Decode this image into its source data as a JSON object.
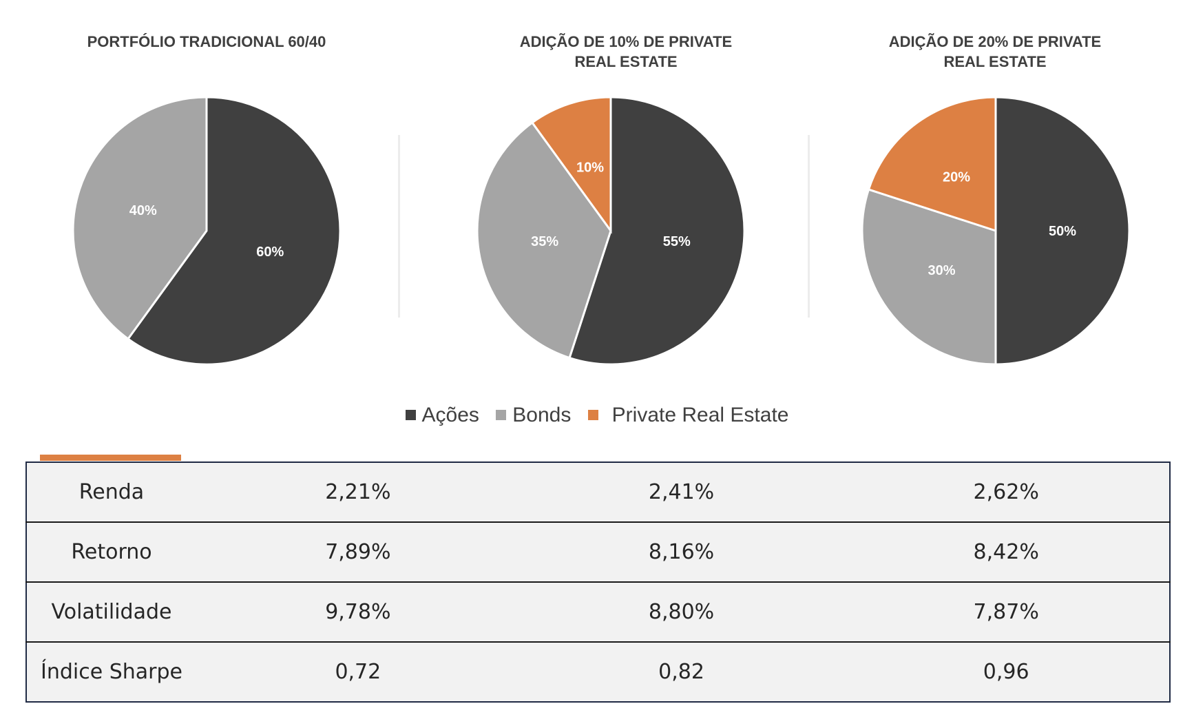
{
  "chart_data": [
    {
      "type": "pie",
      "title": "PORTFÓLIO TRADICIONAL 60/40",
      "categories": [
        "Ações",
        "Bonds"
      ],
      "values": [
        60,
        40
      ],
      "labels": [
        "60%",
        "40%"
      ]
    },
    {
      "type": "pie",
      "title": "ADIÇÃO DE 10% DE PRIVATE REAL ESTATE",
      "categories": [
        "Ações",
        "Bonds",
        "Private Real Estate"
      ],
      "values": [
        55,
        35,
        10
      ],
      "labels": [
        "55%",
        "35%",
        "10%"
      ]
    },
    {
      "type": "pie",
      "title": "ADIÇÃO DE 20% DE PRIVATE REAL ESTATE",
      "categories": [
        "Ações",
        "Bonds",
        "Private Real Estate"
      ],
      "values": [
        50,
        30,
        20
      ],
      "labels": [
        "50%",
        "30%",
        "20%"
      ]
    }
  ],
  "titles": [
    [
      "PORTFÓLIO TRADICIONAL 60/40"
    ],
    [
      "ADIÇÃO DE 10% DE PRIVATE",
      "REAL ESTATE"
    ],
    [
      "ADIÇÃO DE 20% DE PRIVATE",
      "REAL ESTATE"
    ]
  ],
  "legend": [
    {
      "label": "Ações",
      "color": "#404040"
    },
    {
      "label": "Bonds",
      "color": "#a5a5a5"
    },
    {
      "label": "Private Real Estate",
      "color": "#dd8043"
    }
  ],
  "colors": {
    "Ações": "#404040",
    "Bonds": "#a5a5a5",
    "Private Real Estate": "#dd8043",
    "accent": "#dd8043"
  },
  "table": {
    "rows": [
      {
        "label": "Renda",
        "values": [
          "2,21%",
          "2,41%",
          "2,62%"
        ]
      },
      {
        "label": "Retorno",
        "values": [
          "7,89%",
          "8,16%",
          "8,42%"
        ]
      },
      {
        "label": "Volatilidade",
        "values": [
          "9,78%",
          "8,80%",
          "7,87%"
        ]
      },
      {
        "label": "Índice Sharpe",
        "values": [
          "0,72",
          "0,82",
          "0,96"
        ]
      }
    ]
  }
}
